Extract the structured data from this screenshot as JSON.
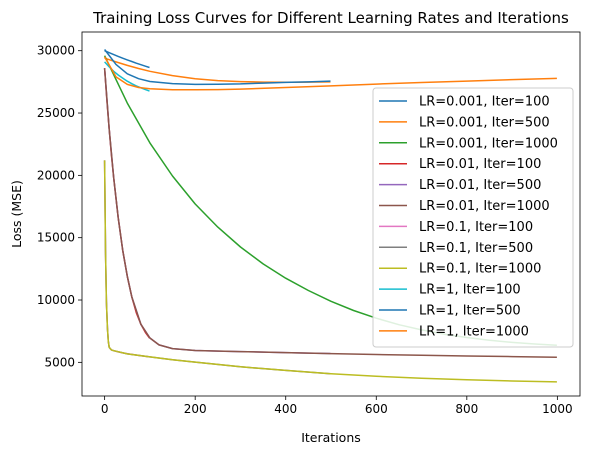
{
  "chart_data": {
    "type": "line",
    "title": "Training Loss Curves for Different Learning Rates and Iterations",
    "xlabel": "Iterations",
    "ylabel": "Loss (MSE)",
    "xlim": [
      -50,
      1050
    ],
    "ylim": [
      2300,
      31500
    ],
    "xticks": [
      0,
      200,
      400,
      600,
      800,
      1000
    ],
    "yticks": [
      5000,
      10000,
      15000,
      20000,
      25000,
      30000
    ],
    "grid": false,
    "legend_position": "right",
    "series": [
      {
        "name": "LR=0.001, Iter=100",
        "color": "#1f77b4",
        "x": [
          0,
          10,
          20,
          30,
          40,
          50,
          60,
          70,
          80,
          90,
          99
        ],
        "y": [
          30000,
          29840,
          29690,
          29540,
          29400,
          29260,
          29130,
          29000,
          28880,
          28760,
          28650
        ]
      },
      {
        "name": "LR=0.001, Iter=500",
        "color": "#ff7f0e",
        "x": [
          0,
          25,
          50,
          75,
          100,
          150,
          200,
          250,
          300,
          350,
          400,
          450,
          499
        ],
        "y": [
          29400,
          29100,
          28820,
          28570,
          28350,
          28000,
          27750,
          27600,
          27520,
          27480,
          27470,
          27480,
          27500
        ]
      },
      {
        "name": "LR=0.001, Iter=1000",
        "color": "#2ca02c",
        "x": [
          0,
          50,
          100,
          150,
          200,
          250,
          300,
          350,
          400,
          450,
          500,
          550,
          600,
          650,
          700,
          750,
          800,
          850,
          900,
          950,
          999
        ],
        "y": [
          29600,
          25800,
          22600,
          19950,
          17700,
          15850,
          14250,
          12900,
          11750,
          10760,
          9900,
          9160,
          8540,
          8020,
          7600,
          7260,
          6990,
          6770,
          6600,
          6470,
          6370
        ]
      },
      {
        "name": "LR=0.01, Iter=100",
        "color": "#d62728",
        "x": [
          0,
          5,
          10,
          15,
          20,
          30,
          40,
          50,
          60,
          70,
          80,
          90,
          99
        ],
        "y": [
          28600,
          26000,
          23700,
          21650,
          19800,
          16600,
          14000,
          11900,
          10250,
          8980,
          8050,
          7400,
          6950
        ]
      },
      {
        "name": "LR=0.01, Iter=500",
        "color": "#9467bd",
        "x": [
          0,
          10,
          20,
          30,
          40,
          50,
          60,
          80,
          100,
          120,
          150,
          200,
          250,
          300,
          350,
          400,
          450,
          499
        ],
        "y": [
          28600,
          23700,
          19800,
          16600,
          14000,
          11900,
          10250,
          8050,
          6950,
          6400,
          6100,
          5950,
          5900,
          5860,
          5820,
          5780,
          5740,
          5710
        ]
      },
      {
        "name": "LR=0.01, Iter=1000",
        "color": "#8c564b",
        "x": [
          0,
          10,
          20,
          30,
          40,
          50,
          60,
          80,
          100,
          120,
          150,
          200,
          300,
          400,
          500,
          600,
          700,
          800,
          900,
          999
        ],
        "y": [
          28600,
          23700,
          19800,
          16600,
          14000,
          11900,
          10250,
          8050,
          6950,
          6400,
          6100,
          5950,
          5860,
          5780,
          5700,
          5630,
          5570,
          5510,
          5460,
          5410
        ]
      },
      {
        "name": "LR=0.1, Iter=100",
        "color": "#e377c2",
        "x": [
          0,
          2,
          4,
          6,
          8,
          10,
          15,
          20,
          30,
          40,
          60,
          80,
          99
        ],
        "y": [
          21200,
          14000,
          9900,
          7800,
          6700,
          6200,
          6000,
          5930,
          5840,
          5760,
          5640,
          5530,
          5440
        ]
      },
      {
        "name": "LR=0.1, Iter=500",
        "color": "#7f7f7f",
        "x": [
          0,
          2,
          4,
          6,
          8,
          10,
          15,
          20,
          50,
          100,
          150,
          200,
          300,
          400,
          499
        ],
        "y": [
          21200,
          14000,
          9900,
          7800,
          6700,
          6200,
          6000,
          5930,
          5680,
          5440,
          5210,
          5020,
          4640,
          4350,
          4080
        ]
      },
      {
        "name": "LR=0.1, Iter=1000",
        "color": "#bcbd22",
        "x": [
          0,
          2,
          4,
          6,
          8,
          10,
          15,
          20,
          50,
          100,
          150,
          200,
          300,
          400,
          500,
          600,
          700,
          800,
          900,
          999
        ],
        "y": [
          21200,
          14000,
          9900,
          7800,
          6700,
          6200,
          6000,
          5930,
          5680,
          5440,
          5210,
          5020,
          4640,
          4350,
          4090,
          3880,
          3720,
          3600,
          3500,
          3430
        ]
      },
      {
        "name": "LR=1, Iter=100",
        "color": "#17becf",
        "x": [
          0,
          10,
          20,
          30,
          40,
          50,
          60,
          70,
          80,
          90,
          99
        ],
        "y": [
          29100,
          28700,
          28350,
          28050,
          27800,
          27550,
          27350,
          27180,
          27020,
          26880,
          26760
        ]
      },
      {
        "name": "LR=1, Iter=500",
        "color": "#1f77b4",
        "x": [
          0,
          25,
          50,
          75,
          100,
          150,
          200,
          250,
          300,
          350,
          400,
          450,
          499
        ],
        "y": [
          30100,
          28900,
          28150,
          27750,
          27530,
          27360,
          27300,
          27310,
          27340,
          27400,
          27460,
          27500,
          27560
        ]
      },
      {
        "name": "LR=1, Iter=1000",
        "color": "#ff7f0e",
        "x": [
          0,
          25,
          50,
          75,
          100,
          150,
          200,
          250,
          300,
          400,
          500,
          600,
          700,
          800,
          900,
          999
        ],
        "y": [
          29500,
          27900,
          27300,
          27050,
          26950,
          26870,
          26860,
          26880,
          26920,
          27050,
          27180,
          27320,
          27450,
          27560,
          27680,
          27780
        ]
      }
    ]
  }
}
